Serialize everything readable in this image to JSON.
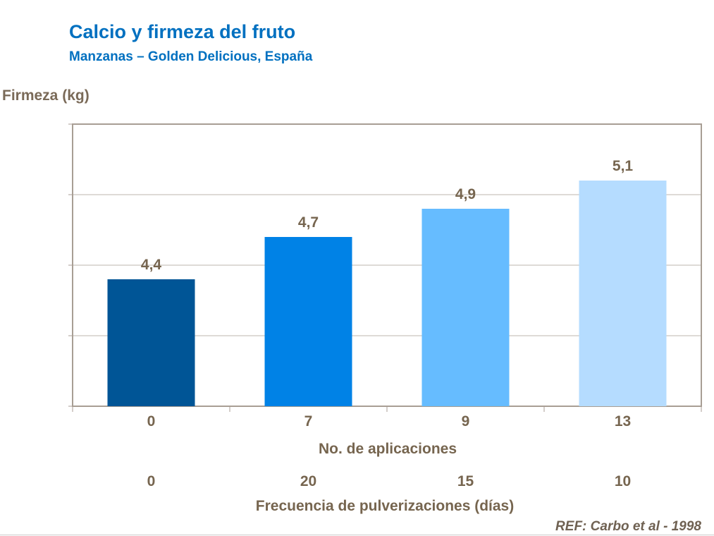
{
  "chart_data": {
    "type": "bar",
    "title": "Calcio y firmeza del fruto",
    "subtitle": "Manzanas – Golden Delicious, España",
    "ylabel": "Firmeza (kg)",
    "xlabel": "No. de aplicaciones",
    "xlabel2": "Frecuencia de pulverizaciones (días)",
    "categories": [
      "0",
      "7",
      "9",
      "13"
    ],
    "categories2": [
      "0",
      "20",
      "15",
      "10"
    ],
    "values": [
      4.4,
      4.7,
      4.9,
      5.1
    ],
    "data_labels": [
      "4,4",
      "4,7",
      "4,9",
      "5,1"
    ],
    "colors": [
      "#005596",
      "#0082e6",
      "#66bcff",
      "#b5dcff"
    ],
    "ylim": [
      3.5,
      5.5
    ],
    "grid": true,
    "source": "REF: Carbo et al - 1998"
  }
}
